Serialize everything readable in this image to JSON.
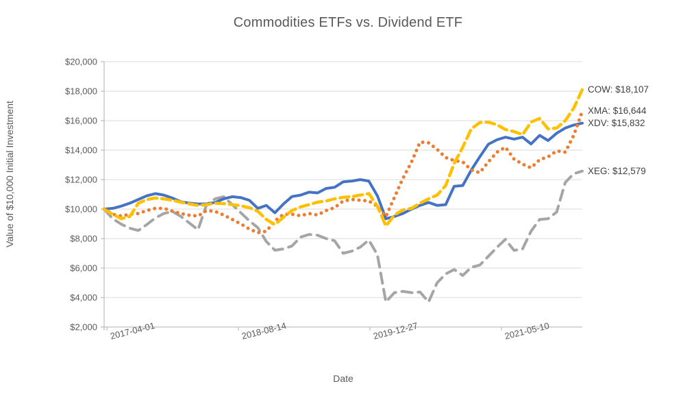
{
  "title": "Commodities ETFs vs. Dividend ETF",
  "chart_data": {
    "type": "line",
    "title": "Commodities ETFs vs. Dividend ETF",
    "xlabel": "Date",
    "ylabel": "Value of $10,000 Initial Investment",
    "ylim": [
      2000,
      20000
    ],
    "ytick_step": 2000,
    "ytick_labels": [
      "$2,000",
      "$4,000",
      "$6,000",
      "$8,000",
      "$10,000",
      "$12,000",
      "$14,000",
      "$16,000",
      "$18,000",
      "$20,000"
    ],
    "grid": "horizontal",
    "legend_position": "right-end-labels",
    "colors": {
      "cow": "#FFC000",
      "xma": "#ED7D31",
      "xdv": "#4472C4",
      "xeg": "#A5A5A5",
      "gridline": "#D9D9D9",
      "axis": "#BFBFBF",
      "text": "#595959"
    },
    "xticks": [
      {
        "label": "2017-04-01",
        "pos": 0.006
      },
      {
        "label": "2018-08-14",
        "pos": 0.281
      },
      {
        "label": "2019-12-27",
        "pos": 0.556
      },
      {
        "label": "2021-05-10",
        "pos": 0.831
      }
    ],
    "series": [
      {
        "name": "XEG",
        "style": "long-dash",
        "color": "#A5A5A5",
        "final": 12579,
        "end_label": "XEG: $12,579",
        "values": [
          10000,
          9350,
          8980,
          8700,
          8550,
          8950,
          9400,
          9700,
          9840,
          9500,
          9050,
          8600,
          10300,
          10700,
          10840,
          10300,
          9760,
          9210,
          8740,
          7800,
          7210,
          7300,
          7500,
          8100,
          8280,
          8230,
          8000,
          7850,
          7000,
          7150,
          7420,
          7900,
          6900,
          3700,
          4330,
          4420,
          4330,
          4370,
          3700,
          5000,
          5600,
          5900,
          5500,
          6050,
          6200,
          6800,
          7400,
          7950,
          7200,
          7300,
          8500,
          9300,
          9350,
          9800,
          11800,
          12400,
          12579
        ]
      },
      {
        "name": "XDV",
        "style": "solid",
        "color": "#4472C4",
        "final": 15832,
        "end_label": "XDV: $15,832",
        "values": [
          10000,
          10050,
          10200,
          10400,
          10650,
          10900,
          11050,
          10950,
          10750,
          10500,
          10400,
          10350,
          10350,
          10450,
          10700,
          10840,
          10780,
          10600,
          10050,
          10250,
          9750,
          10350,
          10850,
          10950,
          11150,
          11100,
          11400,
          11480,
          11850,
          11900,
          12000,
          11900,
          10900,
          9350,
          9500,
          9700,
          10000,
          10250,
          10450,
          10250,
          10300,
          11550,
          11600,
          12650,
          13550,
          14400,
          14700,
          14880,
          14750,
          14880,
          14420,
          15000,
          14650,
          15150,
          15500,
          15700,
          15832
        ]
      },
      {
        "name": "XMA",
        "style": "dotted",
        "color": "#ED7D31",
        "final": 16644,
        "end_label": "XMA: $16,644",
        "values": [
          10000,
          9650,
          9530,
          9650,
          9700,
          9900,
          10050,
          10050,
          9860,
          9700,
          9580,
          9530,
          9900,
          9840,
          9600,
          9300,
          9000,
          8650,
          8400,
          8500,
          9200,
          9650,
          9650,
          9550,
          9700,
          9600,
          9900,
          10100,
          10550,
          10650,
          10600,
          10550,
          10200,
          9500,
          10800,
          12100,
          13200,
          14550,
          14500,
          14050,
          13500,
          13300,
          13200,
          12650,
          12470,
          13200,
          13860,
          14200,
          13400,
          13050,
          12800,
          13350,
          13550,
          13950,
          13860,
          15000,
          16644
        ]
      },
      {
        "name": "COW",
        "style": "dashed",
        "color": "#FFC000",
        "final": 18107,
        "end_label": "COW: $18,107",
        "values": [
          10000,
          9650,
          9350,
          9500,
          10400,
          10650,
          10750,
          10700,
          10600,
          10470,
          10350,
          10250,
          10300,
          10400,
          10370,
          10300,
          10230,
          10100,
          9850,
          9300,
          8950,
          9450,
          9900,
          10150,
          10300,
          10470,
          10550,
          10700,
          10800,
          10840,
          10950,
          11050,
          10200,
          8850,
          9600,
          9950,
          10050,
          10400,
          10700,
          10950,
          11600,
          13100,
          14200,
          15450,
          15870,
          15900,
          15720,
          15400,
          15260,
          15050,
          15900,
          16150,
          15440,
          15500,
          16000,
          16850,
          18107
        ]
      }
    ]
  }
}
